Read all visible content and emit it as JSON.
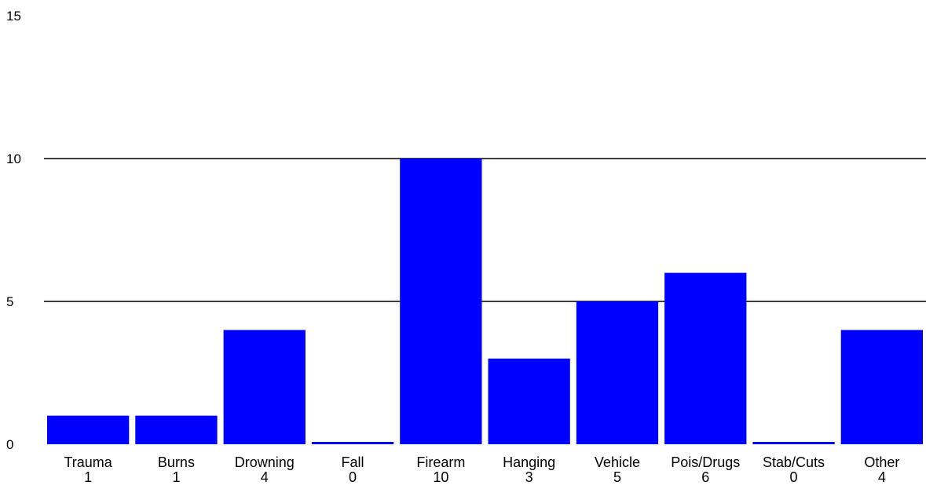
{
  "chart_data": {
    "type": "bar",
    "categories": [
      "Trauma",
      "Burns",
      "Drowning",
      "Fall",
      "Firearm",
      "Hanging",
      "Vehicle",
      "Pois/Drugs",
      "Stab/Cuts",
      "Other"
    ],
    "values": [
      1,
      1,
      4,
      0,
      10,
      3,
      5,
      6,
      0,
      4
    ],
    "value_labels": [
      "1",
      "1",
      "4",
      "0",
      "10",
      "3",
      "5",
      "6",
      "0",
      "4"
    ],
    "yticks": [
      "0",
      "5",
      "10",
      "15"
    ],
    "ylim": [
      0,
      15
    ],
    "grid": true,
    "bar_color": "#0000ff",
    "grid_color": "#000000"
  }
}
